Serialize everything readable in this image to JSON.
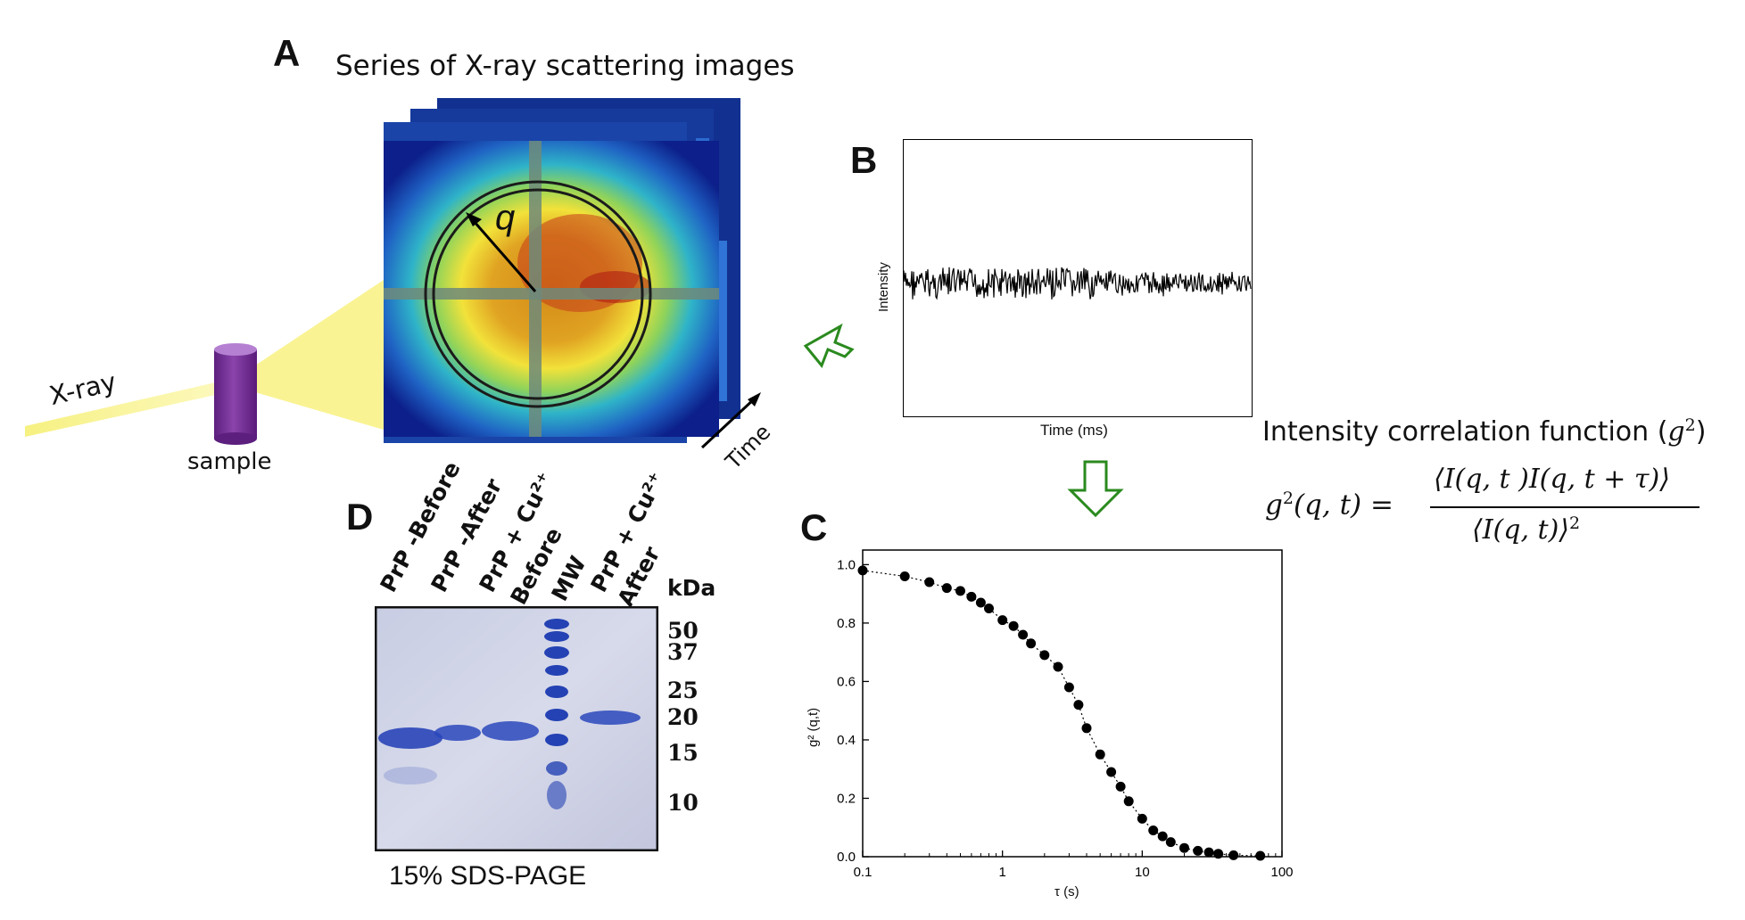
{
  "panel_a": {
    "letter": "A",
    "title": "Series of X-ray scattering images",
    "beam_label": "X-ray",
    "sample_label": "sample",
    "q_label": "q",
    "time_label": "Time"
  },
  "panel_b": {
    "letter": "B",
    "ylabel": "Intensity",
    "xlabel": "Time (ms)"
  },
  "formula": {
    "heading_text": "Intensity correlation function (",
    "heading_var": "g",
    "heading_sup": "2",
    "heading_close": ")",
    "lhs": "g",
    "lhs_sup": "2",
    "lhs_args": "(q, t) =",
    "numerator": "⟨I(q, t )I(q, t + τ)⟩",
    "denominator": "⟨I(q, t)⟩",
    "denominator_sup": "2"
  },
  "panel_c": {
    "letter": "C",
    "ylabel": "g² (q,t)",
    "xlabel": "τ (s)"
  },
  "panel_d": {
    "letter": "D",
    "lanes": [
      "PrP -Before",
      "PrP -After",
      "PrP + Cu²⁺ Before",
      "MW",
      "PrP + Cu²⁺ After"
    ],
    "unit_label": "kDa",
    "markers": [
      "50",
      "37",
      "25",
      "20",
      "15",
      "10"
    ],
    "caption": "15% SDS-PAGE"
  },
  "chart_data": {
    "type": "scatter",
    "xscale": "log",
    "xlim": [
      0.1,
      100
    ],
    "ylim": [
      0.0,
      1.05
    ],
    "xticks": [
      "0.1",
      "1",
      "10",
      "100"
    ],
    "yticks": [
      "0.0",
      "0.2",
      "0.4",
      "0.6",
      "0.8",
      "1.0"
    ],
    "xlabel": "τ (s)",
    "ylabel": "g² (q,t)",
    "grid": false,
    "series": [
      {
        "style": "filled circles with dotted fit line",
        "x": [
          0.1,
          0.2,
          0.3,
          0.4,
          0.5,
          0.6,
          0.7,
          0.8,
          1.0,
          1.2,
          1.4,
          1.6,
          2.0,
          2.5,
          3.0,
          3.5,
          4.0,
          5.0,
          6.0,
          7.0,
          8.0,
          10.0,
          12.0,
          14.0,
          16.0,
          20.0,
          25.0,
          30.0,
          35.0,
          45.0,
          70.0
        ],
        "y": [
          0.98,
          0.96,
          0.94,
          0.92,
          0.91,
          0.89,
          0.87,
          0.85,
          0.81,
          0.79,
          0.76,
          0.73,
          0.69,
          0.65,
          0.58,
          0.52,
          0.44,
          0.35,
          0.29,
          0.24,
          0.19,
          0.13,
          0.09,
          0.07,
          0.05,
          0.03,
          0.02,
          0.015,
          0.01,
          0.005,
          0.003
        ]
      }
    ]
  }
}
